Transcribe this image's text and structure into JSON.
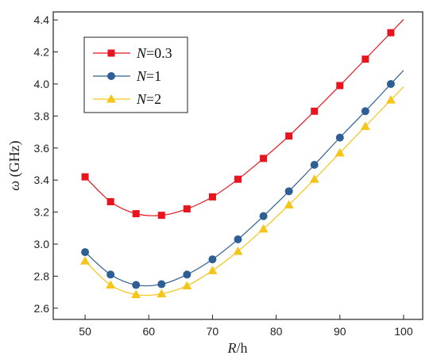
{
  "chart_data": {
    "type": "line",
    "xlabel": {
      "italic": "R",
      "rest": "/h"
    },
    "ylabel": {
      "italic": "ω",
      "rest": " (GHz)"
    },
    "xlim": [
      45,
      103
    ],
    "ylim": [
      2.53,
      4.45
    ],
    "xticks": [
      50,
      60,
      70,
      80,
      90,
      100
    ],
    "yticks": [
      2.6,
      2.8,
      3.0,
      3.2,
      3.4,
      3.6,
      3.8,
      4.0,
      4.2,
      4.4
    ],
    "xtick_labels": [
      "50",
      "60",
      "70",
      "80",
      "90",
      "100"
    ],
    "ytick_labels": [
      "2.6",
      "2.8",
      "3.0",
      "3.2",
      "3.4",
      "3.6",
      "3.8",
      "4.0",
      "4.2",
      "4.4"
    ],
    "grid": false,
    "legend_position": "top-left",
    "x": [
      50,
      54,
      58,
      62,
      66,
      70,
      74,
      78,
      82,
      86,
      90,
      94,
      98
    ],
    "series": [
      {
        "name": {
          "italic": "N",
          "rest": "=0.3"
        },
        "color": "#e8141e",
        "marker": "square",
        "values": [
          3.42,
          3.265,
          3.19,
          3.18,
          3.22,
          3.295,
          3.405,
          3.535,
          3.675,
          3.83,
          3.99,
          4.155,
          4.32
        ]
      },
      {
        "name": {
          "italic": "N",
          "rest": "=1"
        },
        "color": "#2e5f94",
        "marker": "circle",
        "values": [
          2.95,
          2.81,
          2.745,
          2.75,
          2.81,
          2.905,
          3.03,
          3.175,
          3.33,
          3.495,
          3.665,
          3.83,
          4.0
        ]
      },
      {
        "name": {
          "italic": "N",
          "rest": "=2"
        },
        "color": "#f5c518",
        "marker": "triangle",
        "values": [
          2.895,
          2.745,
          2.685,
          2.69,
          2.74,
          2.835,
          2.955,
          3.095,
          3.245,
          3.405,
          3.57,
          3.735,
          3.9
        ]
      }
    ]
  }
}
